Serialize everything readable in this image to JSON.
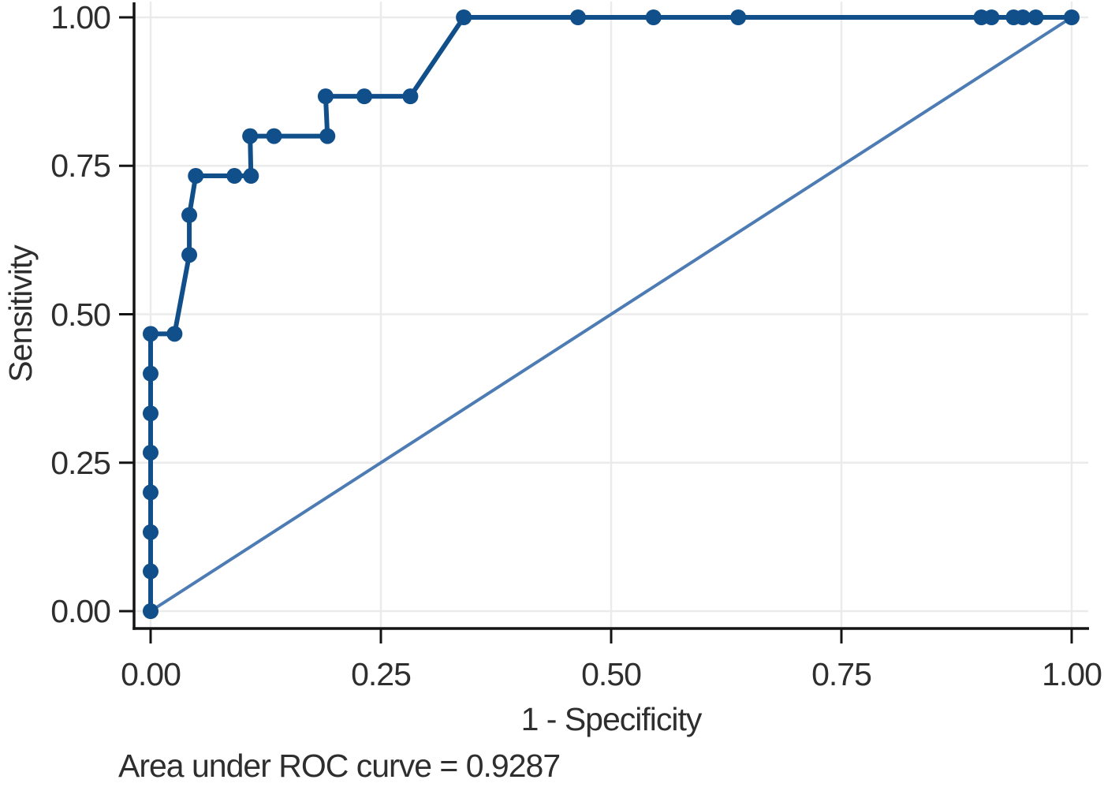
{
  "chart_data": {
    "type": "line",
    "title": "",
    "xlabel": "1 - Specificity",
    "ylabel": "Sensitivity",
    "caption": "Area under ROC curve = 0.9287",
    "auc_value": "0.9287",
    "xlim": [
      0,
      1
    ],
    "ylim": [
      0,
      1
    ],
    "grid": true,
    "legend_position": "none",
    "x_ticks": {
      "values": [
        0,
        0.25,
        0.5,
        0.75,
        1
      ],
      "labels": [
        "0.00",
        "0.25",
        "0.50",
        "0.75",
        "1.00"
      ]
    },
    "y_ticks": {
      "values": [
        0,
        0.25,
        0.5,
        0.75,
        1
      ],
      "labels": [
        "0.00",
        "0.25",
        "0.50",
        "0.75",
        "1.00"
      ]
    },
    "series": [
      {
        "name": "ROC curve",
        "style": "line-with-markers",
        "color": "#114f8b",
        "marker": "circle",
        "points": [
          [
            0.0,
            0.0
          ],
          [
            0.0,
            0.067
          ],
          [
            0.0,
            0.133
          ],
          [
            0.0,
            0.2
          ],
          [
            0.0,
            0.267
          ],
          [
            0.0,
            0.333
          ],
          [
            0.0,
            0.4
          ],
          [
            0.0,
            0.467
          ],
          [
            0.026,
            0.467
          ],
          [
            0.042,
            0.6
          ],
          [
            0.042,
            0.667
          ],
          [
            0.049,
            0.733
          ],
          [
            0.091,
            0.733
          ],
          [
            0.109,
            0.733
          ],
          [
            0.108,
            0.8
          ],
          [
            0.134,
            0.8
          ],
          [
            0.192,
            0.8
          ],
          [
            0.19,
            0.867
          ],
          [
            0.232,
            0.867
          ],
          [
            0.282,
            0.867
          ],
          [
            0.34,
            1.0
          ],
          [
            0.464,
            1.0
          ],
          [
            0.546,
            1.0
          ],
          [
            0.638,
            1.0
          ],
          [
            0.902,
            1.0
          ],
          [
            0.913,
            1.0
          ],
          [
            0.937,
            1.0
          ],
          [
            0.947,
            1.0
          ],
          [
            0.961,
            1.0
          ],
          [
            1.0,
            1.0
          ]
        ]
      },
      {
        "name": "Reference line",
        "style": "line",
        "color": "#4d7cb5",
        "marker": "none",
        "points": [
          [
            0,
            0
          ],
          [
            1,
            1
          ]
        ]
      }
    ],
    "colors": {
      "roc_line": "#114f8b",
      "reference_line": "#4d7cb5",
      "gridline": "#ebebeb",
      "axis": "#141414",
      "text": "#2e2e2e",
      "background": "#ffffff"
    }
  }
}
